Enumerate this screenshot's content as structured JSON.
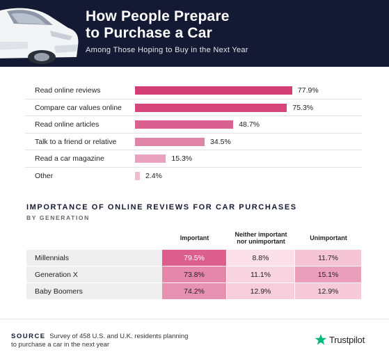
{
  "header": {
    "title_line1": "How People Prepare",
    "title_line2": "to Purchase a Car",
    "subtitle": "Among Those Hoping to Buy in the Next Year"
  },
  "chart_data": [
    {
      "type": "bar",
      "orientation": "horizontal",
      "categories": [
        "Read online reviews",
        "Compare car values online",
        "Read online articles",
        "Talk to a friend or relative",
        "Read a car magazine",
        "Other"
      ],
      "values": [
        77.9,
        75.3,
        48.7,
        34.5,
        15.3,
        2.4
      ],
      "value_labels": [
        "77.9%",
        "75.3%",
        "48.7%",
        "34.5%",
        "15.3%",
        "2.4%"
      ],
      "colors": [
        "#d33f72",
        "#d6467a",
        "#da6090",
        "#e084a8",
        "#e9a2bd",
        "#efbdd0"
      ],
      "xlim": [
        0,
        100
      ]
    },
    {
      "type": "table",
      "title": "IMPORTANCE OF ONLINE REVIEWS FOR CAR PURCHASES",
      "subtitle": "BY GENERATION",
      "columns": [
        "Important",
        "Neither important",
        "nor unimportant",
        "Unimportant"
      ],
      "rows": [
        {
          "label": "Millennials",
          "cells": [
            "79.5%",
            "8.8%",
            "11.7%"
          ],
          "colors": [
            "#dc5e8d",
            "#fbe0ea",
            "#f5c4d5"
          ]
        },
        {
          "label": "Generation X",
          "cells": [
            "73.8%",
            "11.1%",
            "15.1%"
          ],
          "colors": [
            "#e587a9",
            "#f8d3e0",
            "#ec9fbb"
          ]
        },
        {
          "label": "Baby Boomers",
          "cells": [
            "74.2%",
            "12.9%",
            "12.9%"
          ],
          "colors": [
            "#e791b0",
            "#f7cddc",
            "#f6cad9"
          ]
        }
      ]
    }
  ],
  "footer": {
    "source_label": "SOURCE",
    "source_line1": "Survey of 458 U.S. and U.K. residents planning",
    "source_line2": "to purchase a car in the next year",
    "brand": "Trustpilot",
    "brand_color": "#00b67a"
  }
}
